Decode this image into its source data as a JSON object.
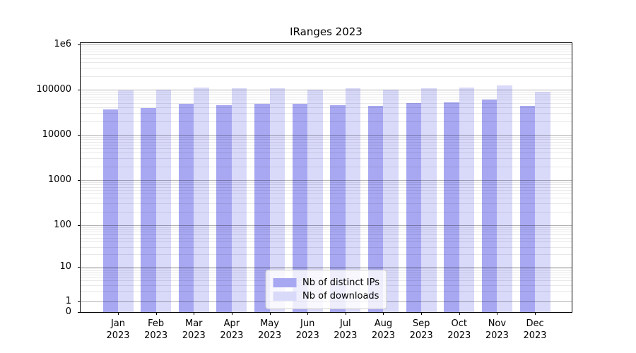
{
  "chart_data": {
    "type": "bar",
    "title": "IRanges 2023",
    "categories": [
      "Jan",
      "Feb",
      "Mar",
      "Apr",
      "May",
      "Jun",
      "Jul",
      "Aug",
      "Sep",
      "Oct",
      "Nov",
      "Dec"
    ],
    "category_year": "2023",
    "series": [
      {
        "name": "Nb of distinct IPs",
        "color": "#a8a8f2",
        "values": [
          36000,
          39000,
          49000,
          45000,
          48000,
          48000,
          46000,
          43000,
          50000,
          52000,
          60000,
          44000
        ]
      },
      {
        "name": "Nb of downloads",
        "color": "#d9d9fa",
        "values": [
          96000,
          99000,
          113000,
          106000,
          108000,
          100000,
          108000,
          101000,
          106000,
          110000,
          125000,
          89000
        ]
      }
    ],
    "yscale": "symlog",
    "ylim": [
      0,
      1000000
    ],
    "ytick_values": [
      0,
      1,
      10,
      100,
      1000,
      10000,
      100000,
      1000000
    ],
    "ytick_labels": [
      "0",
      "1",
      "10",
      "100",
      "1000",
      "10000",
      "100000",
      "1e6"
    ],
    "xlabel": "",
    "ylabel": "",
    "grid": "horizontal major and minor gridlines, drawn over bars",
    "legend_position": "lower center"
  },
  "legend": {
    "items": [
      {
        "label": "Nb of distinct IPs"
      },
      {
        "label": "Nb of downloads"
      }
    ]
  }
}
